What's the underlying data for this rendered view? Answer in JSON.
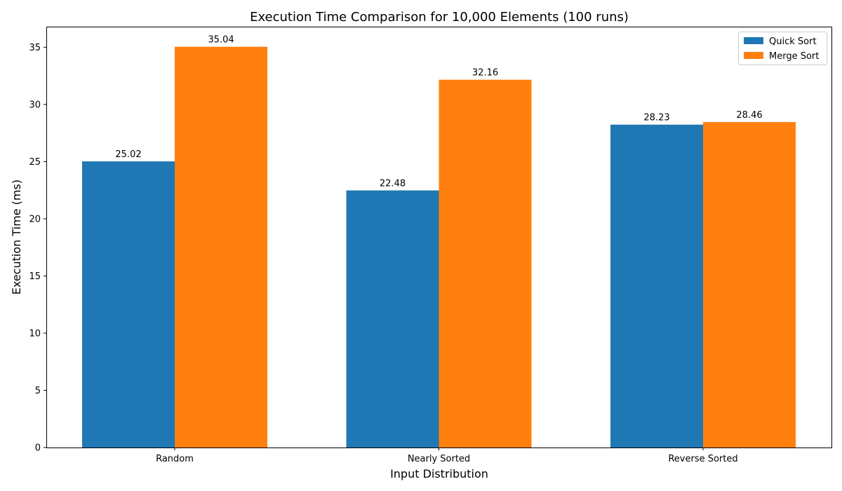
{
  "chart_data": {
    "type": "bar",
    "title": "Execution Time Comparison for 10,000 Elements (100 runs)",
    "xlabel": "Input Distribution",
    "ylabel": "Execution Time (ms)",
    "categories": [
      "Random",
      "Nearly Sorted",
      "Reverse Sorted"
    ],
    "series": [
      {
        "name": "Quick Sort",
        "values": [
          25.02,
          22.48,
          28.23
        ],
        "color": "#1f77b4"
      },
      {
        "name": "Merge Sort",
        "values": [
          35.04,
          32.16,
          28.46
        ],
        "color": "#ff7f0e"
      }
    ],
    "data_labels": [
      [
        "25.02",
        "22.48",
        "28.23"
      ],
      [
        "35.04",
        "32.16",
        "28.46"
      ]
    ],
    "ylim": [
      0,
      36.8
    ],
    "yticks": [
      0,
      5,
      10,
      15,
      20,
      25,
      30,
      35
    ],
    "grid": false,
    "legend_position": "top-right"
  }
}
